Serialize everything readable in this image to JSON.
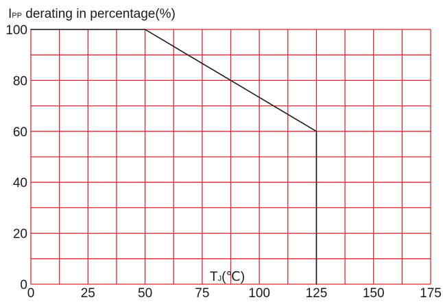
{
  "chart_data": {
    "type": "line",
    "title_prefix": "I",
    "title_subscript": "PP",
    "title_rest": " derating in percentage(%)",
    "xlabel_prefix": "T",
    "xlabel_subscript": "J",
    "xlabel_rest": "(℃)",
    "x_ticks": [
      0,
      25,
      50,
      75,
      100,
      125,
      150,
      175
    ],
    "y_ticks": [
      0,
      20,
      40,
      60,
      80,
      100
    ],
    "xlim": [
      0,
      175
    ],
    "ylim": [
      0,
      100
    ],
    "grid": true,
    "grid_color": "#d9262f",
    "line_color": "#1a1a1a",
    "series": [
      {
        "points": [
          [
            0,
            100
          ],
          [
            50,
            100
          ],
          [
            125,
            60
          ],
          [
            125,
            0
          ]
        ]
      }
    ]
  }
}
